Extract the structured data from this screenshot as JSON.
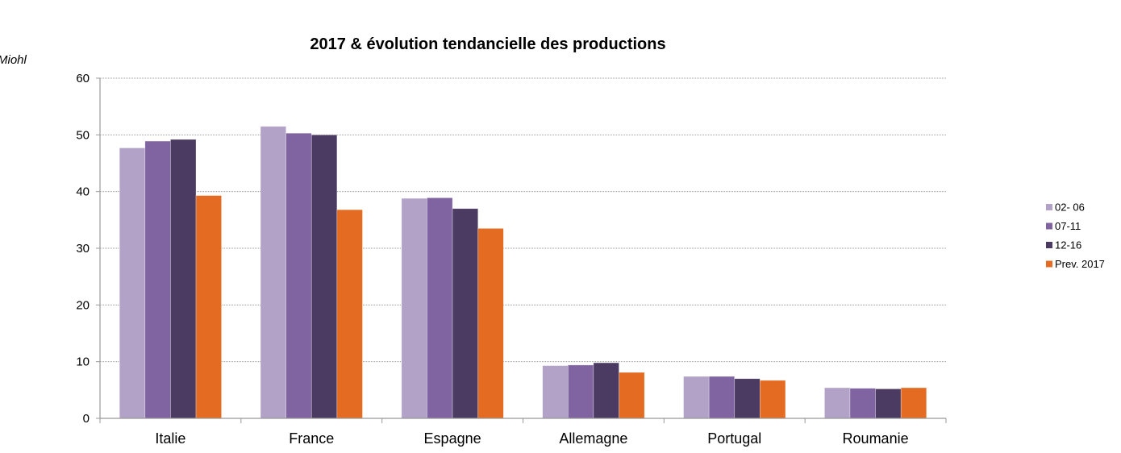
{
  "chart_data": {
    "type": "bar",
    "title": "2017 & évolution tendancielle des productions",
    "xlabel": "",
    "ylabel": "Miohl",
    "ylim": [
      0,
      60
    ],
    "yticks": [
      0,
      10,
      20,
      30,
      40,
      50,
      60
    ],
    "grid": true,
    "legend_position": "right",
    "categories": [
      "Italie",
      "France",
      "Espagne",
      "Allemagne",
      "Portugal",
      "Roumanie"
    ],
    "series": [
      {
        "name": "02- 06",
        "color": "#b3a2c7",
        "values": [
          47.7,
          51.5,
          38.8,
          9.3,
          7.4,
          5.4
        ]
      },
      {
        "name": "07-11",
        "color": "#8064a2",
        "values": [
          48.9,
          50.3,
          38.9,
          9.4,
          7.4,
          5.3
        ]
      },
      {
        "name": "12-16",
        "color": "#4b3b62",
        "values": [
          49.2,
          50.0,
          37.0,
          9.8,
          7.0,
          5.2
        ]
      },
      {
        "name": "Prev. 2017",
        "color": "#e46c22",
        "values": [
          39.3,
          36.8,
          33.5,
          8.1,
          6.7,
          5.4
        ]
      }
    ]
  }
}
